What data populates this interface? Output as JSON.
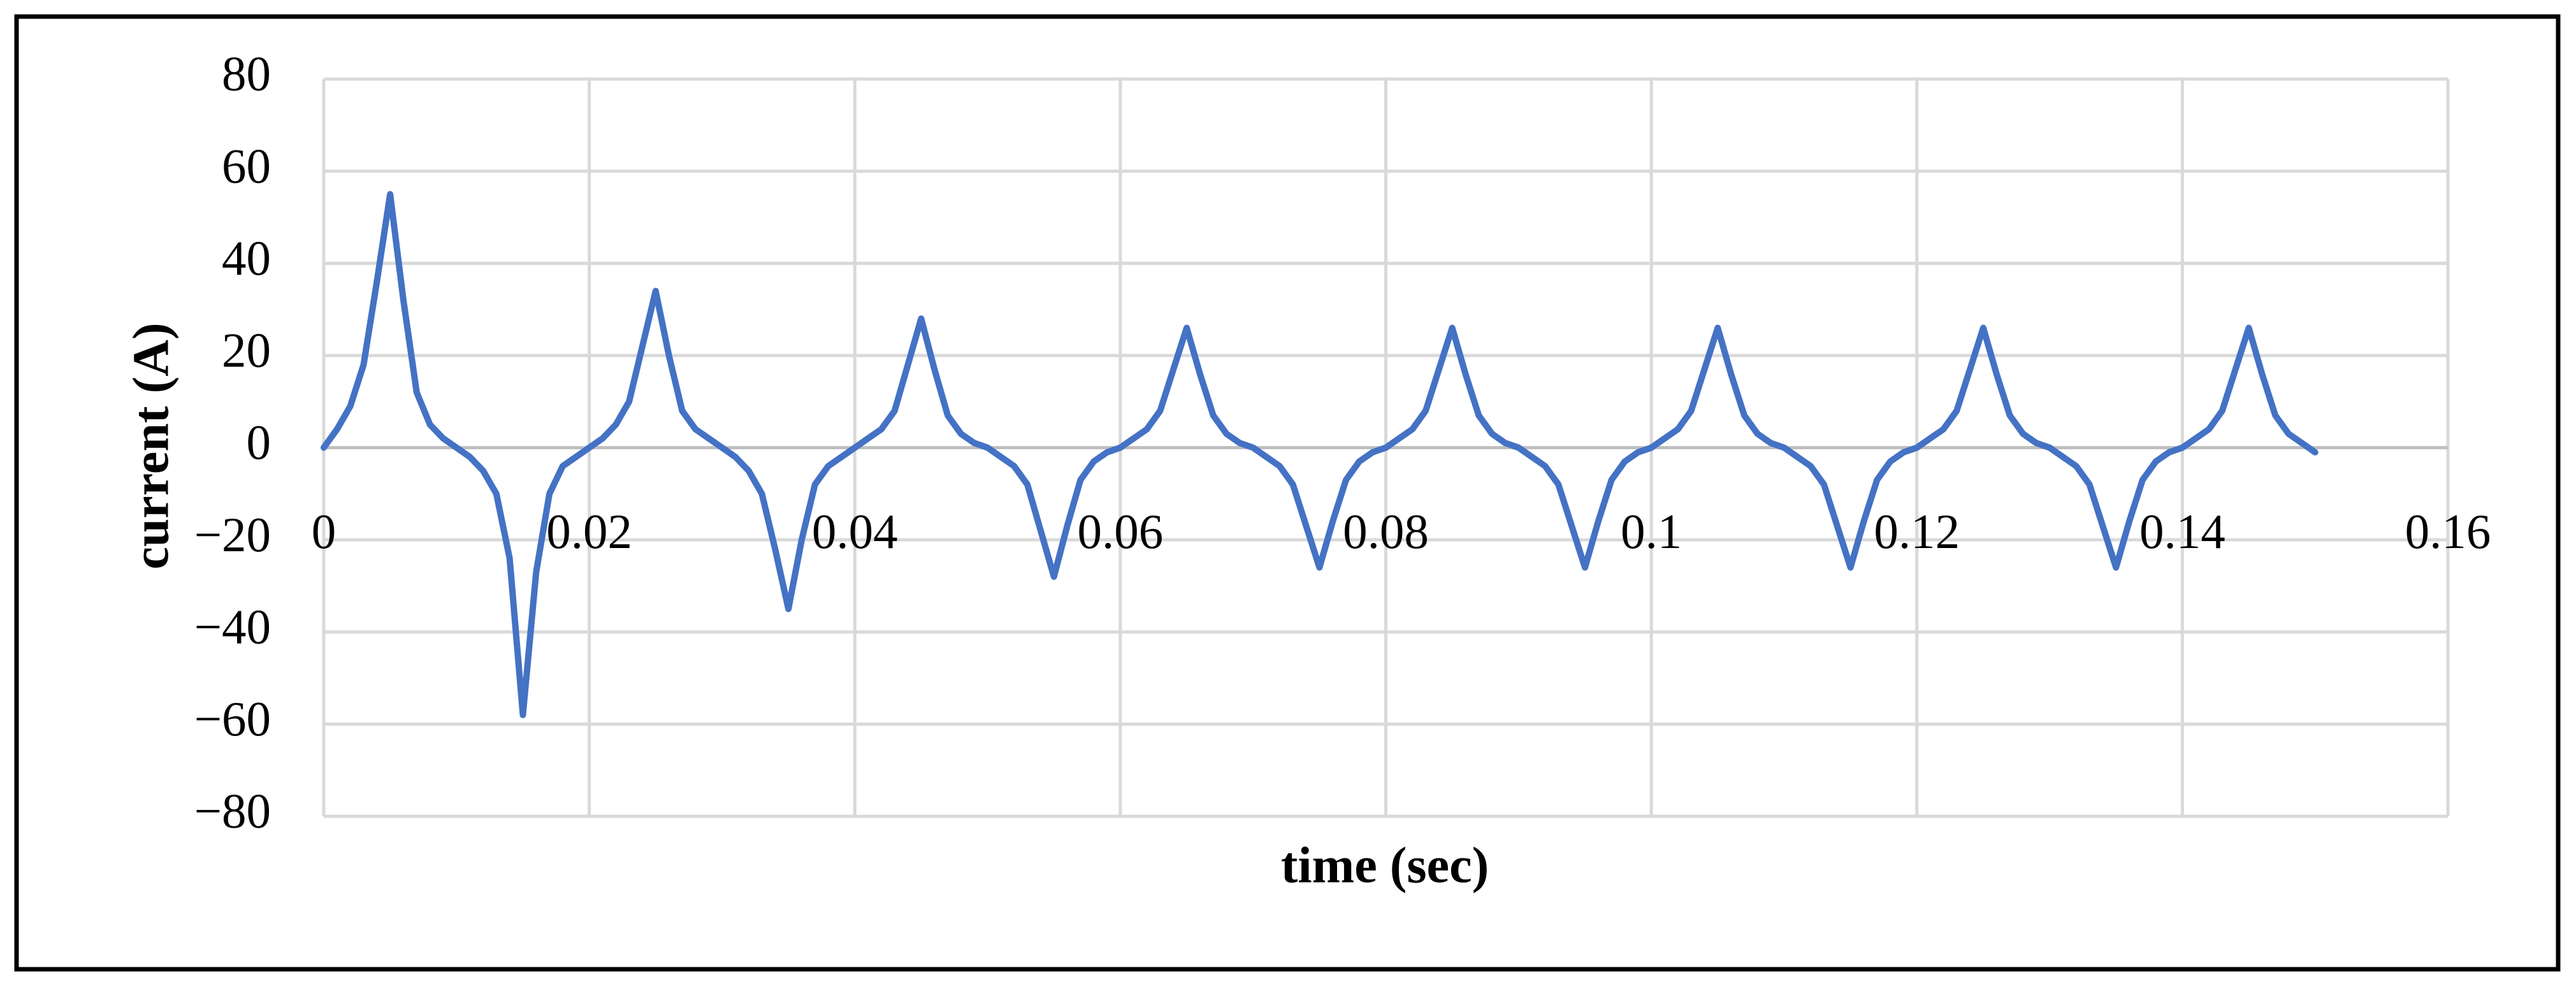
{
  "chart_data": {
    "type": "line",
    "xlabel": "time (sec)",
    "ylabel": "current (A)",
    "xlim": [
      0,
      0.16
    ],
    "xticks": [
      0,
      0.02,
      0.04,
      0.06,
      0.08,
      0.1,
      0.12,
      0.14,
      0.16
    ],
    "ylim": [
      -80,
      80
    ],
    "yticks": [
      {
        "value": -80,
        "label": "−80"
      },
      {
        "value": -60,
        "label": "−60"
      },
      {
        "value": -40,
        "label": "−40"
      },
      {
        "value": -20,
        "label": "−20"
      },
      0,
      20,
      40,
      60,
      80
    ],
    "grid": true,
    "x": [
      0,
      0.001,
      0.002,
      0.003,
      0.004,
      0.005,
      0.006,
      0.007,
      0.008,
      0.009,
      0.01,
      0.011,
      0.012,
      0.013,
      0.014,
      0.015,
      0.016,
      0.017,
      0.018,
      0.019,
      0.02,
      0.021,
      0.022,
      0.023,
      0.024,
      0.025,
      0.026,
      0.027,
      0.028,
      0.029,
      0.03,
      0.031,
      0.032,
      0.033,
      0.034,
      0.035,
      0.036,
      0.037,
      0.038,
      0.039,
      0.04,
      0.041,
      0.042,
      0.043,
      0.044,
      0.045,
      0.046,
      0.047,
      0.048,
      0.049,
      0.05,
      0.051,
      0.052,
      0.053,
      0.054,
      0.055,
      0.056,
      0.057,
      0.058,
      0.059,
      0.06,
      0.061,
      0.062,
      0.063,
      0.064,
      0.065,
      0.066,
      0.067,
      0.068,
      0.069,
      0.07,
      0.071,
      0.072,
      0.073,
      0.074,
      0.075,
      0.076,
      0.077,
      0.078,
      0.079,
      0.08,
      0.081,
      0.082,
      0.083,
      0.084,
      0.085,
      0.086,
      0.087,
      0.088,
      0.089,
      0.09,
      0.091,
      0.092,
      0.093,
      0.094,
      0.095,
      0.096,
      0.097,
      0.098,
      0.099,
      0.1,
      0.101,
      0.102,
      0.103,
      0.104,
      0.105,
      0.106,
      0.107,
      0.108,
      0.109,
      0.11,
      0.111,
      0.112,
      0.113,
      0.114,
      0.115,
      0.116,
      0.117,
      0.118,
      0.119,
      0.12,
      0.121,
      0.122,
      0.123,
      0.124,
      0.125,
      0.126,
      0.127,
      0.128,
      0.129,
      0.13,
      0.131,
      0.132,
      0.133,
      0.134,
      0.135,
      0.136,
      0.137,
      0.138,
      0.139,
      0.14,
      0.141,
      0.142,
      0.143,
      0.144,
      0.145,
      0.146,
      0.147,
      0.148,
      0.149,
      0.15
    ],
    "series": [
      {
        "color": "#4472c4",
        "values": [
          0,
          4,
          9,
          18,
          36,
          55,
          32,
          12,
          5,
          2,
          0,
          -2,
          -5,
          -10,
          -24,
          -58,
          -27,
          -10,
          -4,
          -2,
          0,
          2,
          5,
          10,
          22,
          34,
          20,
          8,
          4,
          2,
          0,
          -2,
          -5,
          -10,
          -22,
          -35,
          -20,
          -8,
          -4,
          -2,
          0,
          2,
          4,
          8,
          18,
          28,
          17,
          7,
          3,
          1,
          0,
          -2,
          -4,
          -8,
          -18,
          -28,
          -17,
          -7,
          -3,
          -1,
          0,
          2,
          4,
          8,
          17,
          26,
          16,
          7,
          3,
          1,
          0,
          -2,
          -4,
          -8,
          -17,
          -26,
          -16,
          -7,
          -3,
          -1,
          0,
          2,
          4,
          8,
          17,
          26,
          16,
          7,
          3,
          1,
          0,
          -2,
          -4,
          -8,
          -17,
          -26,
          -16,
          -7,
          -3,
          -1,
          0,
          2,
          4,
          8,
          17,
          26,
          16,
          7,
          3,
          1,
          0,
          -2,
          -4,
          -8,
          -17,
          -26,
          -16,
          -7,
          -3,
          -1,
          0,
          2,
          4,
          8,
          17,
          26,
          16,
          7,
          3,
          1,
          0,
          -2,
          -4,
          -8,
          -17,
          -26,
          -16,
          -7,
          -3,
          -1,
          0,
          2,
          4,
          8,
          17,
          26,
          16,
          7,
          3,
          1,
          -1
        ]
      }
    ]
  }
}
